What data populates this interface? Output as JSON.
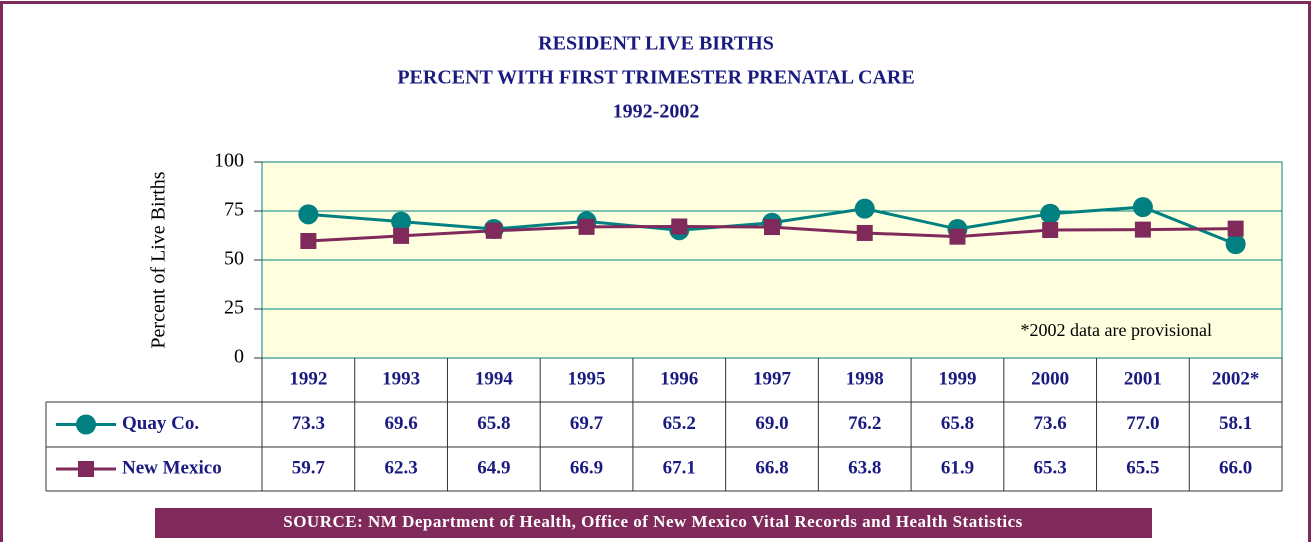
{
  "chart_data": {
    "type": "line",
    "title": "RESIDENT LIVE BIRTHS",
    "subtitle": [
      "PERCENT WITH FIRST TRIMESTER PRENATAL CARE",
      "1992-2002"
    ],
    "y_label": "Percent of Live Births",
    "categories": [
      "1992",
      "1993",
      "1994",
      "1995",
      "1996",
      "1997",
      "1998",
      "1999",
      "2000",
      "2001",
      "2002*"
    ],
    "series": [
      {
        "name": "Quay Co.",
        "color": "#008080",
        "marker": "circle",
        "values": [
          73.3,
          69.6,
          65.8,
          69.7,
          65.2,
          69.0,
          76.2,
          65.8,
          73.6,
          77.0,
          58.1
        ],
        "value_labels": [
          "73.3",
          "69.6",
          "65.8",
          "69.7",
          "65.2",
          "69.0",
          "76.2",
          "65.8",
          "73.6",
          "77.0",
          "58.1"
        ]
      },
      {
        "name": "New Mexico",
        "color": "#7f2a5a",
        "marker": "square",
        "values": [
          59.7,
          62.3,
          64.9,
          66.9,
          67.1,
          66.8,
          63.8,
          61.9,
          65.3,
          65.5,
          66.0
        ],
        "value_labels": [
          "59.7",
          "62.3",
          "64.9",
          "66.9",
          "67.1",
          "66.8",
          "63.8",
          "61.9",
          "65.3",
          "65.5",
          "66.0"
        ]
      }
    ],
    "ylim": [
      0,
      100
    ],
    "yticks": [
      0,
      25,
      50,
      75,
      100
    ],
    "grid": true,
    "annotation": "*2002 data are provisional",
    "source": "SOURCE: NM Department of Health, Office of New Mexico Vital Records and Health Statistics"
  }
}
